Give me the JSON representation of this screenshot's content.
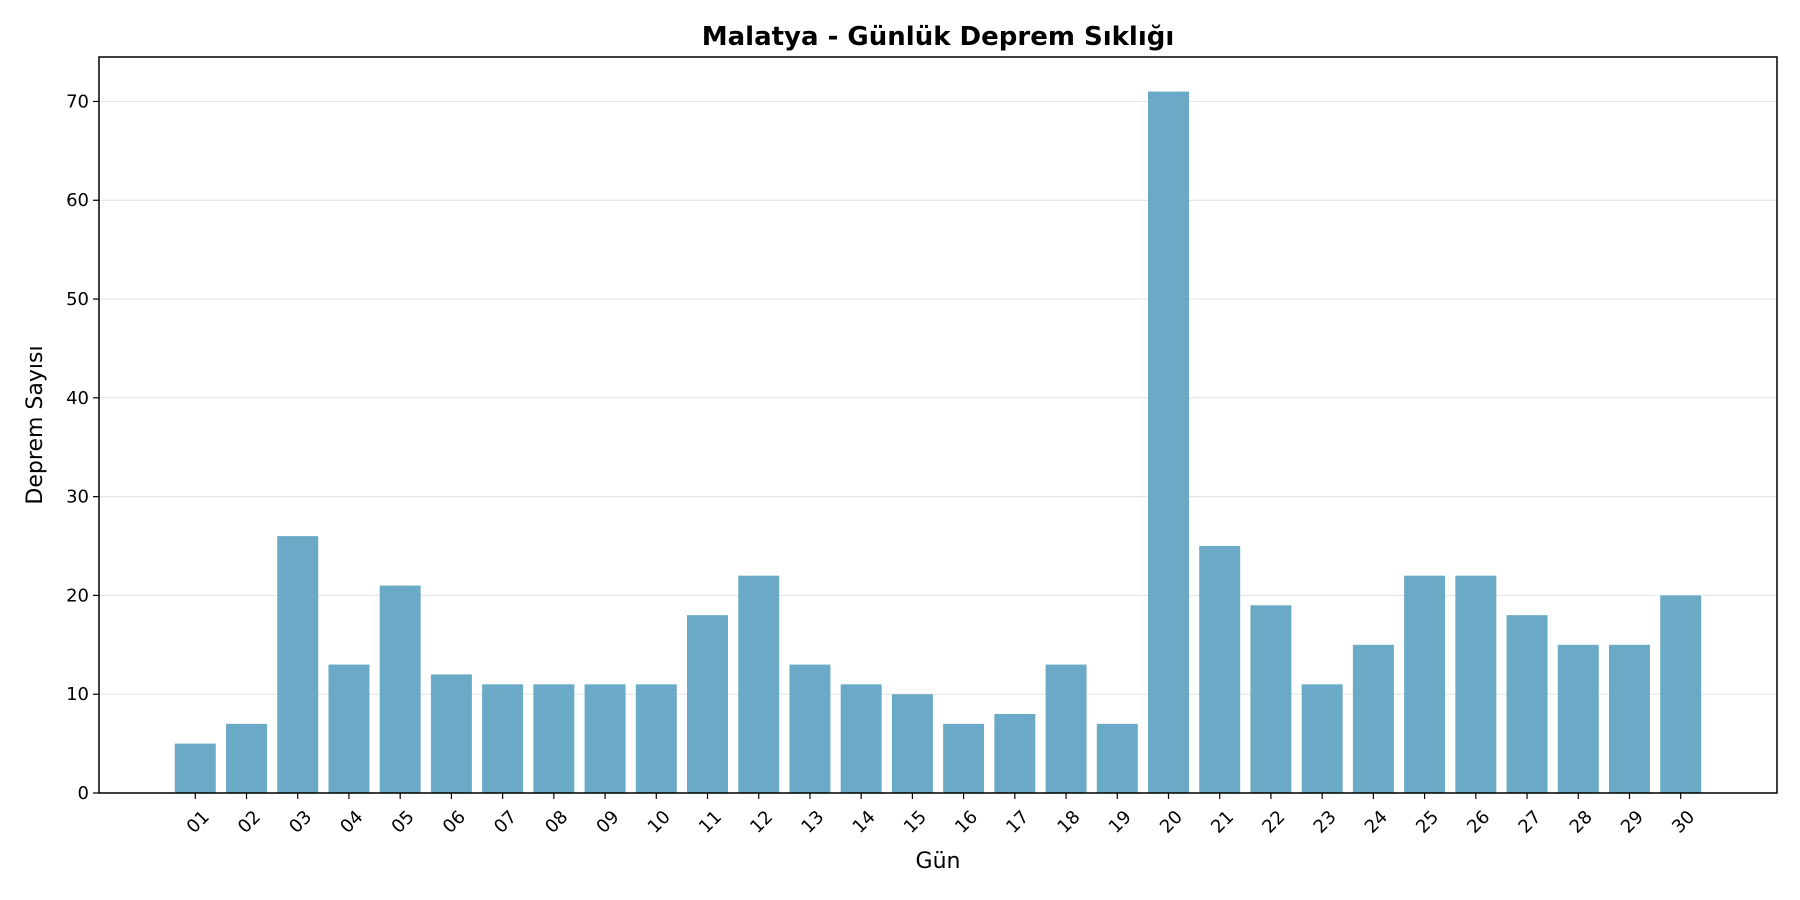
{
  "chart_data": {
    "type": "bar",
    "title": "Malatya - Günlük Deprem Sıklığı",
    "x_label": "Gün",
    "y_label": "Deprem Sayısı",
    "categories": [
      "01",
      "02",
      "03",
      "04",
      "05",
      "06",
      "07",
      "08",
      "09",
      "10",
      "11",
      "12",
      "13",
      "14",
      "15",
      "16",
      "17",
      "18",
      "19",
      "20",
      "21",
      "22",
      "23",
      "24",
      "25",
      "26",
      "27",
      "28",
      "29",
      "30"
    ],
    "values": [
      5,
      7,
      26,
      13,
      21,
      12,
      11,
      11,
      11,
      11,
      18,
      22,
      13,
      11,
      10,
      7,
      8,
      13,
      7,
      71,
      25,
      19,
      11,
      15,
      22,
      22,
      18,
      15,
      15,
      20
    ],
    "color": "#6aaac6",
    "ylim": [
      0,
      74.5
    ],
    "yticks": [
      0,
      10,
      20,
      30,
      40,
      50,
      60,
      70
    ],
    "grid": true
  }
}
